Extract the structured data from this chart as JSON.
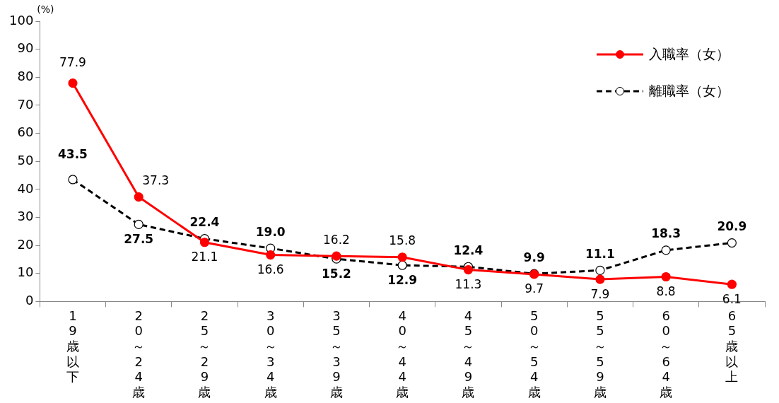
{
  "chart_data": {
    "type": "line",
    "ylabel": "(%)",
    "categories": [
      "19歳以下",
      "20～24歳",
      "25～29歳",
      "30～34歳",
      "35～39歳",
      "40～44歳",
      "45～49歳",
      "50～54歳",
      "55～59歳",
      "60～64歳",
      "65歳以上"
    ],
    "ylim": [
      0,
      100
    ],
    "yticks": [
      0,
      10,
      20,
      30,
      40,
      50,
      60,
      70,
      80,
      90,
      100
    ],
    "grid": false,
    "legend": "top right",
    "marker": "circle",
    "data_labels": true,
    "series": [
      {
        "name": "入職率（女）",
        "color": "#ff0000",
        "line_style": "solid",
        "values": [
          77.9,
          37.3,
          21.1,
          16.6,
          16.2,
          15.8,
          11.3,
          9.7,
          7.9,
          8.8,
          6.1
        ],
        "value_labels": [
          "77.9",
          "37.3",
          "21.1",
          "16.6",
          "16.2",
          "15.8",
          "11.3",
          "9.7",
          "7.9",
          "8.8",
          "6.1"
        ]
      },
      {
        "name": "離職率（女）",
        "color": "#000000",
        "line_style": "dashed",
        "values": [
          43.5,
          27.5,
          22.4,
          19.0,
          15.2,
          12.9,
          12.4,
          9.9,
          11.1,
          18.3,
          20.9
        ],
        "value_labels": [
          "43.5",
          "27.5",
          "22.4",
          "19.0",
          "15.2",
          "12.9",
          "12.4",
          "9.9",
          "11.1",
          "18.3",
          "20.9"
        ]
      }
    ]
  }
}
